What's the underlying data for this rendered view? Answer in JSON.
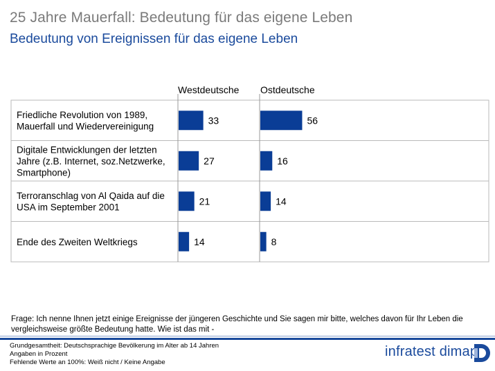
{
  "header": {
    "title": "25 Jahre Mauerfall: Bedeutung für das eigene Leben",
    "subtitle": "Bedeutung von Ereignissen für das eigene Leben"
  },
  "chart_data": {
    "type": "bar",
    "orientation": "horizontal",
    "categories": [
      [
        "Friedliche Revolution von 1989,",
        "Mauerfall und Wiedervereinigung"
      ],
      [
        "Digitale Entwicklungen der letzten",
        "Jahre (z.B. Internet, soz.Netzwerke,",
        "Smartphone)"
      ],
      [
        "Terroranschlag von Al Qaida auf die",
        "USA im September 2001"
      ],
      [
        "Ende des Zweiten Weltkriegs"
      ]
    ],
    "series": [
      {
        "name": "Westdeutsche",
        "values": [
          33,
          27,
          21,
          14
        ]
      },
      {
        "name": "Ostdeutsche",
        "values": [
          56,
          16,
          14,
          8
        ]
      }
    ],
    "bar_color": "#0a3d96"
  },
  "question": "Frage: Ich nenne Ihnen jetzt einige Ereignisse der jüngeren Geschichte und Sie sagen mir bitte, welches davon für Ihr Leben die vergleichsweise größte Bedeutung hatte. Wie ist das mit -",
  "footnotes": {
    "line1": "Grundgesamtheit: Deutschsprachige Bevölkerung im Alter ab 14 Jahren",
    "line2": "Angaben in Prozent",
    "line3": "Fehlende Werte an 100%: Weiß nicht / Keine Angabe"
  },
  "logo": {
    "text": "infratest dimap",
    "icon": "infratest-dimap-logo-icon"
  }
}
